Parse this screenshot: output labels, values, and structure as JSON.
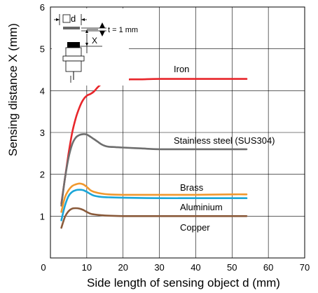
{
  "chart_data": {
    "type": "line",
    "title": "",
    "xlabel": "Side length of sensing object d (mm)",
    "ylabel": "Sensing distance X (mm)",
    "xlim": [
      0,
      70
    ],
    "ylim": [
      0,
      6
    ],
    "xticks": [
      "0",
      "10",
      "20",
      "30",
      "40",
      "50",
      "60",
      "70"
    ],
    "yticks": [
      "1",
      "2",
      "3",
      "4",
      "5",
      "6"
    ],
    "grid": true,
    "series": [
      {
        "name": "Iron",
        "color": "#e8262b",
        "x": [
          3,
          4,
          5,
          6,
          7,
          8,
          9,
          10,
          11,
          12,
          13,
          14,
          15,
          16,
          18,
          20,
          22,
          25,
          30,
          40,
          50,
          54
        ],
        "y": [
          1.3,
          1.9,
          2.5,
          3.0,
          3.35,
          3.6,
          3.78,
          3.88,
          3.92,
          3.98,
          4.08,
          4.16,
          4.21,
          4.23,
          4.24,
          4.25,
          4.27,
          4.27,
          4.28,
          4.28,
          4.28,
          4.28
        ]
      },
      {
        "name": "Stainless steel (SUS304)",
        "color": "#6e6e6e",
        "x": [
          3,
          4,
          5,
          6,
          7,
          8,
          9,
          10,
          11,
          12,
          13,
          14,
          15,
          16,
          18,
          20,
          25,
          30,
          40,
          50,
          54
        ],
        "y": [
          1.25,
          1.9,
          2.4,
          2.72,
          2.88,
          2.94,
          2.96,
          2.95,
          2.9,
          2.84,
          2.78,
          2.72,
          2.68,
          2.66,
          2.65,
          2.64,
          2.62,
          2.6,
          2.6,
          2.6,
          2.6
        ]
      },
      {
        "name": "Brass",
        "color": "#f0982e",
        "x": [
          3,
          4,
          5,
          6,
          7,
          8,
          9,
          10,
          11,
          12,
          14,
          16,
          20,
          30,
          40,
          50,
          54
        ],
        "y": [
          1.1,
          1.45,
          1.62,
          1.72,
          1.76,
          1.78,
          1.76,
          1.7,
          1.62,
          1.58,
          1.54,
          1.52,
          1.51,
          1.51,
          1.51,
          1.52,
          1.52
        ]
      },
      {
        "name": "Aluminium",
        "color": "#1ba6d8",
        "x": [
          3,
          4,
          5,
          6,
          7,
          8,
          9,
          10,
          11,
          12,
          14,
          16,
          20,
          30,
          40,
          50,
          54
        ],
        "y": [
          0.9,
          1.25,
          1.48,
          1.58,
          1.62,
          1.63,
          1.62,
          1.58,
          1.53,
          1.49,
          1.46,
          1.45,
          1.44,
          1.43,
          1.43,
          1.43,
          1.43
        ]
      },
      {
        "name": "Copper",
        "color": "#8a5a3a",
        "x": [
          3,
          4,
          5,
          6,
          7,
          8,
          9,
          10,
          11,
          12,
          14,
          16,
          20,
          30,
          40,
          50,
          54
        ],
        "y": [
          0.72,
          0.98,
          1.12,
          1.18,
          1.19,
          1.18,
          1.15,
          1.1,
          1.06,
          1.04,
          1.02,
          1.01,
          1.0,
          1.0,
          1.0,
          1.0,
          1.0
        ]
      }
    ],
    "diagram": {
      "d_label": "d",
      "x_label": "X",
      "thickness_label": "t = 1 mm"
    }
  }
}
